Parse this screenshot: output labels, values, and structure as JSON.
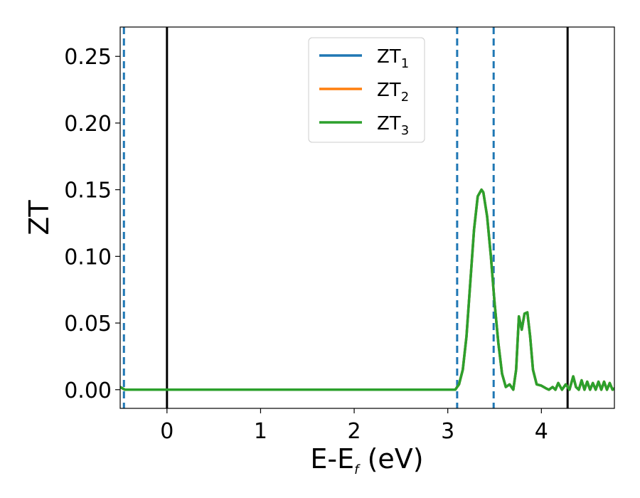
{
  "chart_data": {
    "type": "line",
    "xlabel_main": "E-E",
    "xlabel_sub": "f",
    "xlabel_unit": " (eV)",
    "ylabel": "ZT",
    "xlim": [
      -0.5,
      4.78
    ],
    "ylim": [
      -0.014,
      0.272
    ],
    "x_ticks": [
      0,
      1,
      2,
      3,
      4
    ],
    "x_tick_labels": [
      "0",
      "1",
      "2",
      "3",
      "4"
    ],
    "y_ticks": [
      0.0,
      0.05,
      0.1,
      0.15,
      0.2,
      0.25
    ],
    "y_tick_labels": [
      "0.00",
      "0.05",
      "0.10",
      "0.15",
      "0.20",
      "0.25"
    ],
    "grid": false,
    "legend_position": "upper-center",
    "vertical_lines": [
      {
        "x": -0.46,
        "style": "dashed",
        "color": "#1f77b4"
      },
      {
        "x": 0.0,
        "style": "solid",
        "color": "#000000"
      },
      {
        "x": 3.1,
        "style": "dashed",
        "color": "#1f77b4"
      },
      {
        "x": 3.49,
        "style": "dashed",
        "color": "#1f77b4"
      },
      {
        "x": 4.28,
        "style": "solid",
        "color": "#000000"
      }
    ],
    "series": [
      {
        "name_main": "ZT",
        "name_sub": "1",
        "color": "#1f77b4",
        "x": [
          -0.5,
          -0.45,
          0.0,
          1.0,
          2.0,
          3.0,
          3.08,
          3.12,
          3.16,
          3.2,
          3.24,
          3.28,
          3.32,
          3.36,
          3.38,
          3.42,
          3.46,
          3.5,
          3.54,
          3.58,
          3.62,
          3.66,
          3.7,
          3.73,
          3.76,
          3.79,
          3.82,
          3.85,
          3.88,
          3.91,
          3.95,
          4.0,
          4.05,
          4.08,
          4.12,
          4.15,
          4.18,
          4.22,
          4.26,
          4.3,
          4.34,
          4.37,
          4.4,
          4.43,
          4.46,
          4.49,
          4.52,
          4.55,
          4.58,
          4.61,
          4.64,
          4.67,
          4.7,
          4.73,
          4.76,
          4.78
        ],
        "y": [
          0.002,
          0.0,
          0.0,
          0.0,
          0.0,
          0.0,
          0.0,
          0.004,
          0.015,
          0.04,
          0.08,
          0.12,
          0.145,
          0.15,
          0.148,
          0.13,
          0.1,
          0.065,
          0.035,
          0.012,
          0.002,
          0.004,
          0.0,
          0.015,
          0.055,
          0.045,
          0.057,
          0.058,
          0.04,
          0.015,
          0.004,
          0.003,
          0.001,
          0.0,
          0.002,
          0.0,
          0.005,
          0.0,
          0.004,
          0.0,
          0.01,
          0.002,
          0.0,
          0.007,
          0.0,
          0.006,
          0.0,
          0.005,
          0.0,
          0.006,
          0.0,
          0.006,
          0.0,
          0.005,
          0.0,
          0.001
        ]
      },
      {
        "name_main": "ZT",
        "name_sub": "2",
        "color": "#ff7f0e",
        "x": [
          -0.5,
          -0.45,
          0.0,
          1.0,
          2.0,
          3.0,
          3.08,
          3.12,
          3.16,
          3.2,
          3.24,
          3.28,
          3.32,
          3.36,
          3.38,
          3.42,
          3.46,
          3.5,
          3.54,
          3.58,
          3.62,
          3.66,
          3.7,
          3.73,
          3.76,
          3.79,
          3.82,
          3.85,
          3.88,
          3.91,
          3.95,
          4.0,
          4.05,
          4.08,
          4.12,
          4.15,
          4.18,
          4.22,
          4.26,
          4.3,
          4.34,
          4.37,
          4.4,
          4.43,
          4.46,
          4.49,
          4.52,
          4.55,
          4.58,
          4.61,
          4.64,
          4.67,
          4.7,
          4.73,
          4.76,
          4.78
        ],
        "y": [
          0.002,
          0.0,
          0.0,
          0.0,
          0.0,
          0.0,
          0.0,
          0.004,
          0.015,
          0.04,
          0.08,
          0.12,
          0.145,
          0.15,
          0.148,
          0.13,
          0.1,
          0.065,
          0.035,
          0.012,
          0.002,
          0.004,
          0.0,
          0.015,
          0.055,
          0.045,
          0.057,
          0.058,
          0.04,
          0.015,
          0.004,
          0.003,
          0.001,
          0.0,
          0.002,
          0.0,
          0.005,
          0.0,
          0.004,
          0.0,
          0.01,
          0.002,
          0.0,
          0.007,
          0.0,
          0.006,
          0.0,
          0.005,
          0.0,
          0.006,
          0.0,
          0.006,
          0.0,
          0.005,
          0.0,
          0.001
        ]
      },
      {
        "name_main": "ZT",
        "name_sub": "3",
        "color": "#2ca02c",
        "x": [
          -0.5,
          -0.45,
          0.0,
          1.0,
          2.0,
          3.0,
          3.08,
          3.12,
          3.16,
          3.2,
          3.24,
          3.28,
          3.32,
          3.36,
          3.38,
          3.42,
          3.46,
          3.5,
          3.54,
          3.58,
          3.62,
          3.66,
          3.7,
          3.73,
          3.76,
          3.79,
          3.82,
          3.85,
          3.88,
          3.91,
          3.95,
          4.0,
          4.05,
          4.08,
          4.12,
          4.15,
          4.18,
          4.22,
          4.26,
          4.3,
          4.34,
          4.37,
          4.4,
          4.43,
          4.46,
          4.49,
          4.52,
          4.55,
          4.58,
          4.61,
          4.64,
          4.67,
          4.7,
          4.73,
          4.76,
          4.78
        ],
        "y": [
          0.002,
          0.0,
          0.0,
          0.0,
          0.0,
          0.0,
          0.0,
          0.004,
          0.015,
          0.04,
          0.08,
          0.12,
          0.145,
          0.15,
          0.148,
          0.13,
          0.1,
          0.065,
          0.035,
          0.012,
          0.002,
          0.004,
          0.0,
          0.015,
          0.055,
          0.045,
          0.057,
          0.058,
          0.04,
          0.015,
          0.004,
          0.003,
          0.001,
          0.0,
          0.002,
          0.0,
          0.005,
          0.0,
          0.004,
          0.0,
          0.01,
          0.002,
          0.0,
          0.007,
          0.0,
          0.006,
          0.0,
          0.005,
          0.0,
          0.006,
          0.0,
          0.006,
          0.0,
          0.005,
          0.0,
          0.001
        ]
      }
    ]
  }
}
